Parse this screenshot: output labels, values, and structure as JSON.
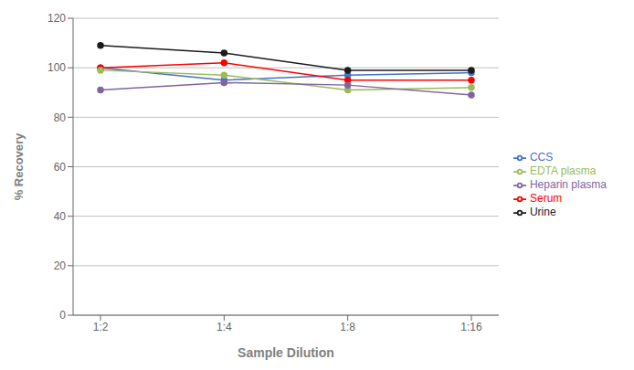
{
  "chart_data": {
    "type": "line",
    "xlabel": "Sample Dilution",
    "ylabel": "% Recovery",
    "categories": [
      "1:2",
      "1:4",
      "1:8",
      "1:16"
    ],
    "series": [
      {
        "name": "CCS",
        "color": "#4472C4",
        "values": [
          100,
          95,
          97,
          98
        ]
      },
      {
        "name": "Serum",
        "color": "#FF0000",
        "values": [
          100,
          102,
          95,
          95
        ]
      },
      {
        "name": "EDTA plasma",
        "color": "#9BBB59",
        "values": [
          99,
          97,
          91,
          92
        ]
      },
      {
        "name": "Heparin plasma",
        "color": "#8064A2",
        "values": [
          91,
          94,
          93,
          89
        ]
      },
      {
        "name": "Urine",
        "color": "#1C1C1C",
        "values": [
          109,
          106,
          99,
          99
        ]
      }
    ],
    "ylim": [
      0,
      120
    ],
    "yticks": [
      0,
      20,
      40,
      60,
      80,
      100,
      120
    ],
    "grid": true,
    "legend": "right",
    "marker": "circle"
  }
}
